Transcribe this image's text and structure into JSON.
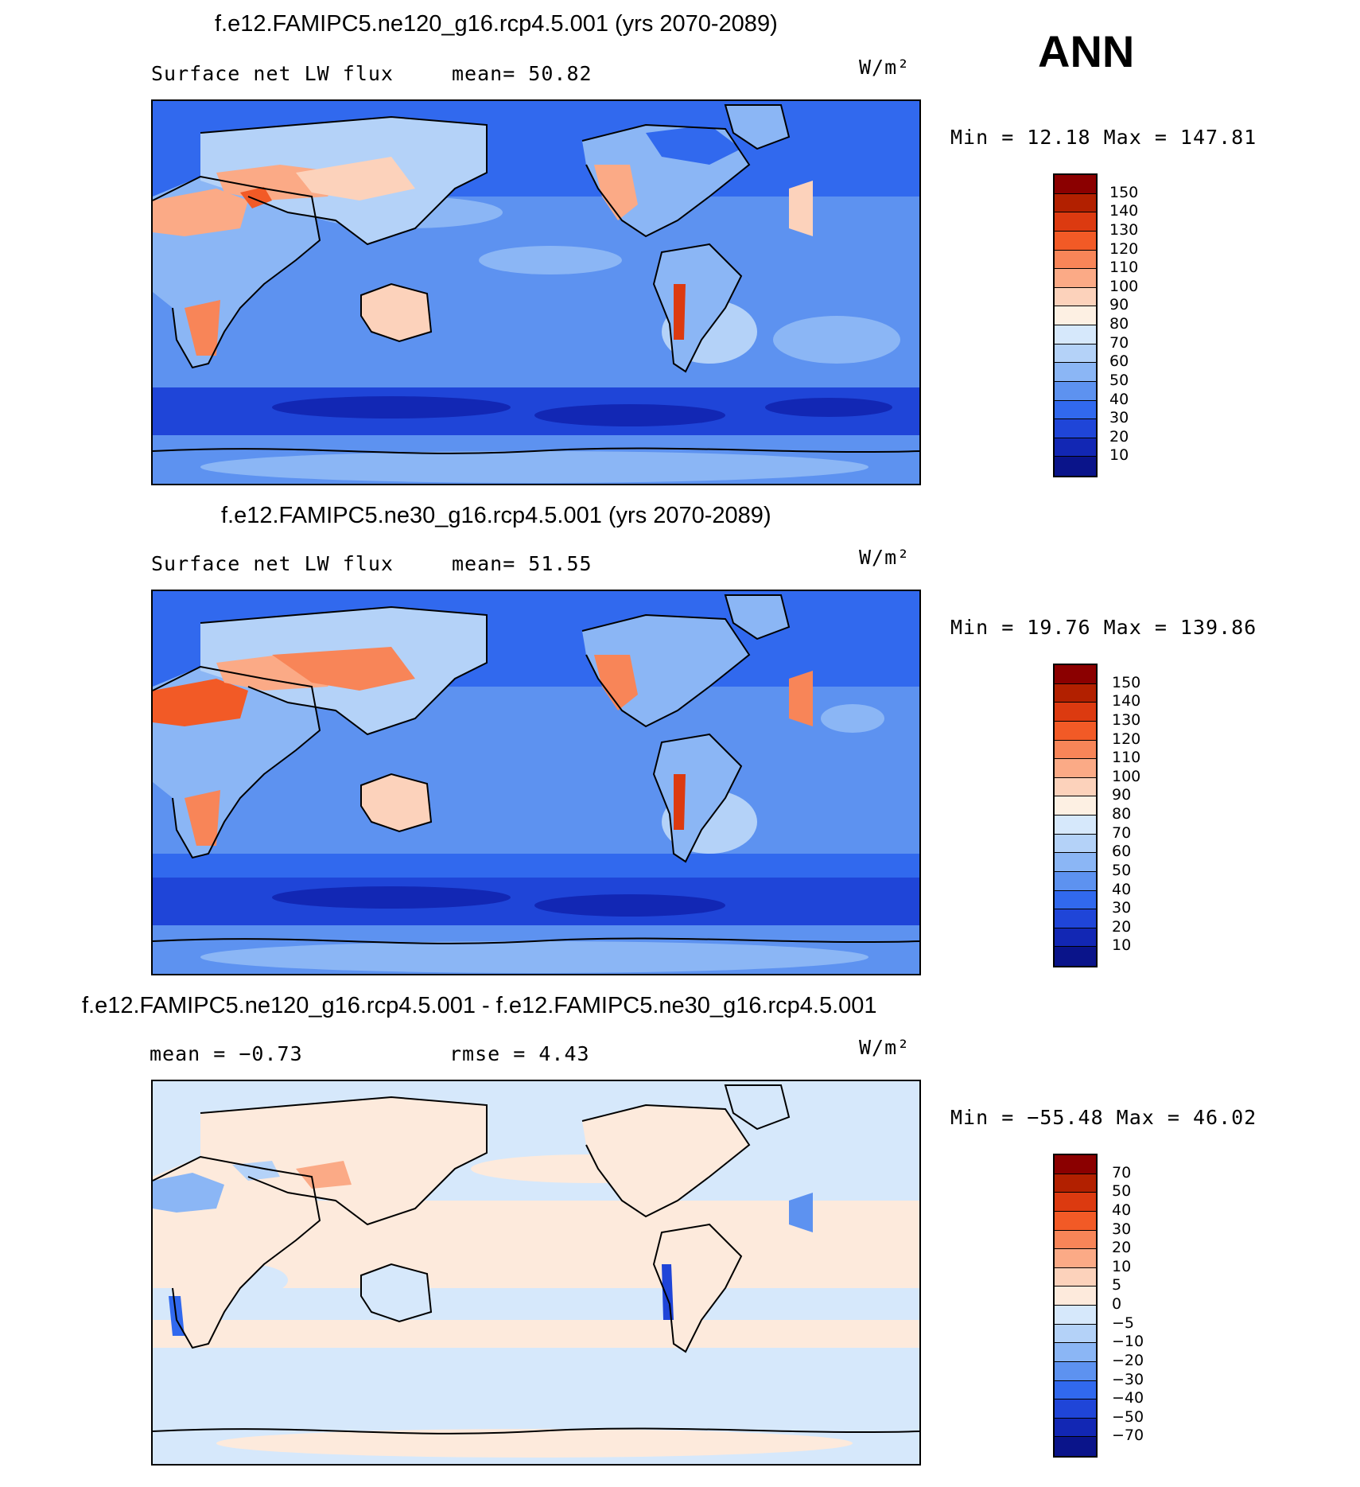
{
  "season": "ANN",
  "units_label": "W/m²",
  "panels": [
    {
      "id": "p1",
      "title": "f.e12.FAMIPC5.ne120_g16.rcp4.5.001 (yrs 2070-2089)",
      "left_text": "Surface net LW flux",
      "stat_text": "mean=  50.82",
      "minmax_text": "Min =   12.18 Max  =  147.81",
      "colorbar_labels": [
        "150",
        "140",
        "130",
        "120",
        "110",
        "100",
        "90",
        "80",
        "70",
        "60",
        "50",
        "40",
        "30",
        "20",
        "10"
      ],
      "colors": [
        "#8b0000",
        "#b22000",
        "#dc3a10",
        "#f25a26",
        "#f88558",
        "#fbaa86",
        "#fcd2bb",
        "#fdf0e3",
        "#d6e8fb",
        "#b4d2f8",
        "#8bb6f5",
        "#5d92f0",
        "#3169ee",
        "#1f45d8",
        "#1227b4",
        "#0a148a"
      ]
    },
    {
      "id": "p2",
      "title": "f.e12.FAMIPC5.ne30_g16.rcp4.5.001 (yrs 2070-2089)",
      "left_text": "Surface net LW flux",
      "stat_text": "mean=  51.55",
      "minmax_text": "Min =   19.76 Max  =  139.86",
      "colorbar_labels": [
        "150",
        "140",
        "130",
        "120",
        "110",
        "100",
        "90",
        "80",
        "70",
        "60",
        "50",
        "40",
        "30",
        "20",
        "10"
      ],
      "colors": [
        "#8b0000",
        "#b22000",
        "#dc3a10",
        "#f25a26",
        "#f88558",
        "#fbaa86",
        "#fcd2bb",
        "#fdf0e3",
        "#d6e8fb",
        "#b4d2f8",
        "#8bb6f5",
        "#5d92f0",
        "#3169ee",
        "#1f45d8",
        "#1227b4",
        "#0a148a"
      ]
    },
    {
      "id": "p3",
      "title": "f.e12.FAMIPC5.ne120_g16.rcp4.5.001 - f.e12.FAMIPC5.ne30_g16.rcp4.5.001",
      "left_text": "mean =   −0.73",
      "stat_text": "rmse =    4.43",
      "minmax_text": "Min = −55.48 Max =   46.02",
      "colorbar_labels": [
        "70",
        "50",
        "40",
        "30",
        "20",
        "10",
        "5",
        "0",
        "−5",
        "−10",
        "−20",
        "−30",
        "−40",
        "−50",
        "−70"
      ],
      "colors": [
        "#8b0000",
        "#b22000",
        "#dc3a10",
        "#f25a26",
        "#f88558",
        "#fbaa86",
        "#fcd2bb",
        "#fdeadc",
        "#d6e8fb",
        "#b4d2f8",
        "#8bb6f5",
        "#5d92f0",
        "#3169ee",
        "#1f45d8",
        "#1227b4",
        "#0a148a"
      ]
    }
  ]
}
